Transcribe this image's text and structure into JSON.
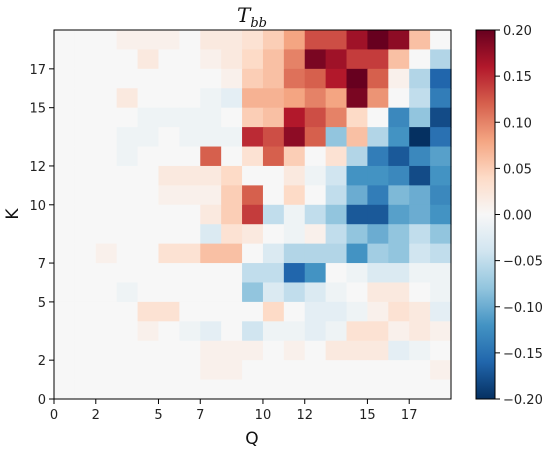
{
  "chart_data": {
    "type": "heatmap",
    "title_main": "T",
    "title_sub": "bb",
    "xlabel": "Q",
    "ylabel": "K",
    "x_range": [
      0,
      19
    ],
    "y_range": [
      0,
      19
    ],
    "x_ticks": [
      0,
      2,
      5,
      7,
      10,
      12,
      15,
      17
    ],
    "y_ticks": [
      0,
      2,
      5,
      7,
      10,
      12,
      15,
      17
    ],
    "colorbar": {
      "cmap": "RdBu_r",
      "vmin": -0.2,
      "vmax": 0.2,
      "ticks": [
        0.2,
        0.15,
        0.1,
        0.05,
        0.0,
        -0.05,
        -0.1,
        -0.15,
        -0.2
      ],
      "tick_labels": [
        "0.20",
        "0.15",
        "0.10",
        "0.05",
        "0.00",
        "−0.05",
        "−0.10",
        "−0.15",
        "−0.20"
      ]
    },
    "grid": false,
    "values_row_order": "top row (K=18) first, columns Q=0..18",
    "values": [
      [
        0.0,
        0.0,
        0.0,
        0.01,
        0.01,
        0.01,
        0.0,
        0.02,
        0.02,
        0.03,
        0.05,
        0.08,
        0.13,
        0.13,
        0.17,
        0.2,
        0.18,
        0.06,
        0.0
      ],
      [
        0.0,
        0.0,
        0.0,
        0.0,
        0.02,
        0.0,
        0.0,
        0.01,
        0.02,
        0.04,
        0.06,
        0.1,
        0.19,
        0.17,
        0.14,
        0.14,
        0.06,
        0.0,
        -0.06
      ],
      [
        0.0,
        0.0,
        0.0,
        0.0,
        0.0,
        0.0,
        0.0,
        0.0,
        0.01,
        0.05,
        0.06,
        0.11,
        0.12,
        0.16,
        0.2,
        0.12,
        0.01,
        -0.06,
        -0.16
      ],
      [
        0.0,
        0.0,
        0.0,
        0.02,
        0.0,
        0.0,
        0.0,
        -0.01,
        -0.02,
        0.07,
        0.07,
        0.08,
        0.1,
        0.08,
        0.19,
        0.09,
        0.0,
        -0.05,
        -0.14
      ],
      [
        0.0,
        0.0,
        0.0,
        0.0,
        -0.01,
        -0.01,
        -0.01,
        -0.01,
        0.0,
        0.05,
        0.06,
        0.16,
        0.13,
        0.1,
        0.04,
        0.0,
        -0.13,
        -0.08,
        -0.18
      ],
      [
        0.0,
        0.0,
        0.0,
        -0.01,
        -0.01,
        0.0,
        -0.01,
        -0.01,
        -0.01,
        0.15,
        0.13,
        0.18,
        0.12,
        -0.08,
        0.06,
        -0.06,
        -0.12,
        -0.2,
        -0.15
      ],
      [
        0.0,
        0.0,
        0.0,
        -0.01,
        0.0,
        0.0,
        0.0,
        0.12,
        0.0,
        0.03,
        0.12,
        0.05,
        0.0,
        0.03,
        -0.06,
        -0.14,
        -0.17,
        -0.13,
        -0.11
      ],
      [
        0.0,
        0.0,
        0.0,
        0.0,
        0.0,
        0.02,
        0.02,
        0.02,
        0.04,
        0.0,
        0.0,
        0.02,
        -0.01,
        -0.04,
        -0.12,
        -0.12,
        -0.13,
        -0.18,
        -0.12
      ],
      [
        0.0,
        0.0,
        0.0,
        0.0,
        0.0,
        0.01,
        0.01,
        0.01,
        0.05,
        0.12,
        0.0,
        0.04,
        0.0,
        -0.05,
        -0.1,
        -0.14,
        -0.09,
        -0.1,
        -0.13
      ],
      [
        0.0,
        0.0,
        0.0,
        0.0,
        0.0,
        0.0,
        0.0,
        0.02,
        0.05,
        0.14,
        -0.05,
        -0.01,
        -0.05,
        -0.08,
        -0.17,
        -0.17,
        -0.11,
        -0.1,
        -0.12
      ],
      [
        0.0,
        0.0,
        0.0,
        0.0,
        0.0,
        0.0,
        0.0,
        -0.03,
        0.03,
        0.02,
        0.0,
        -0.01,
        0.01,
        -0.05,
        -0.08,
        -0.1,
        -0.08,
        -0.05,
        -0.08
      ],
      [
        0.0,
        0.0,
        0.01,
        0.0,
        0.0,
        0.03,
        0.03,
        0.06,
        0.06,
        0.0,
        -0.03,
        -0.06,
        -0.06,
        -0.06,
        -0.12,
        -0.07,
        -0.08,
        -0.04,
        -0.05
      ],
      [
        0.0,
        0.0,
        0.0,
        0.0,
        0.0,
        0.0,
        0.0,
        0.0,
        0.0,
        -0.05,
        -0.05,
        -0.16,
        -0.12,
        0.0,
        -0.01,
        -0.03,
        -0.03,
        -0.01,
        -0.01
      ],
      [
        0.0,
        0.0,
        0.0,
        -0.01,
        0.0,
        0.0,
        0.0,
        0.0,
        0.0,
        -0.08,
        -0.03,
        -0.05,
        -0.03,
        -0.01,
        0.0,
        0.02,
        0.02,
        0.0,
        -0.01
      ],
      [
        0.0,
        0.0,
        0.0,
        0.0,
        0.03,
        0.03,
        0.0,
        0.0,
        0.0,
        0.0,
        0.04,
        0.0,
        -0.02,
        -0.02,
        -0.01,
        0.01,
        0.03,
        0.02,
        -0.02
      ],
      [
        0.0,
        0.0,
        0.0,
        0.0,
        0.01,
        0.0,
        -0.01,
        -0.02,
        0.0,
        -0.04,
        -0.01,
        -0.01,
        -0.02,
        -0.01,
        0.03,
        0.03,
        0.01,
        0.02,
        0.01
      ],
      [
        0.0,
        0.0,
        0.0,
        0.0,
        0.0,
        0.0,
        0.0,
        0.01,
        0.01,
        0.01,
        0.0,
        0.01,
        0.0,
        0.02,
        0.02,
        0.02,
        -0.02,
        -0.01,
        0.0
      ],
      [
        0.0,
        0.0,
        0.0,
        0.0,
        0.0,
        0.0,
        0.0,
        0.01,
        0.01,
        0.0,
        0.0,
        0.0,
        0.0,
        0.0,
        0.0,
        0.0,
        0.0,
        0.0,
        0.01
      ],
      [
        0.0,
        0.0,
        0.0,
        0.0,
        0.0,
        0.0,
        0.0,
        0.0,
        0.0,
        0.0,
        0.0,
        0.0,
        0.0,
        0.0,
        0.0,
        0.0,
        0.0,
        0.0,
        0.0
      ]
    ]
  }
}
